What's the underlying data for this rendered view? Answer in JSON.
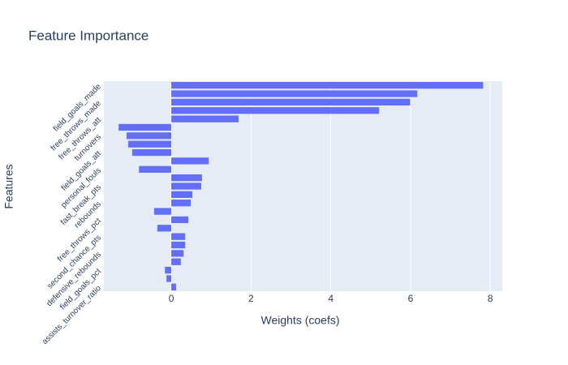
{
  "chart_data": {
    "type": "bar",
    "orientation": "horizontal",
    "title": "Feature Importance",
    "xlabel": "Weights (coefs)",
    "ylabel": "Features",
    "categories": [
      "field_goals_made",
      null,
      "free_throws_made",
      null,
      "free_throws_att",
      null,
      "turnovers",
      null,
      "field_goals_att",
      null,
      "personal_fouls",
      null,
      "fast_break_pts",
      null,
      "rebounds",
      null,
      "free_throws_pct",
      null,
      "second_chance_pts",
      null,
      "defensive_rebounds",
      null,
      "field_goals_pct",
      null,
      "assists_turnover_ratio"
    ],
    "values": [
      7.82,
      6.17,
      5.99,
      5.21,
      1.69,
      -1.32,
      -1.12,
      -1.08,
      -0.98,
      0.94,
      -0.81,
      0.77,
      0.75,
      0.53,
      0.49,
      -0.43,
      0.43,
      -0.35,
      0.35,
      0.35,
      0.31,
      0.24,
      -0.16,
      -0.12,
      0.12
    ],
    "color": "#636efa",
    "xlim": [
      -1.69,
      8.3
    ],
    "xticks": [
      0,
      2,
      4,
      6,
      8
    ],
    "grid": true
  }
}
